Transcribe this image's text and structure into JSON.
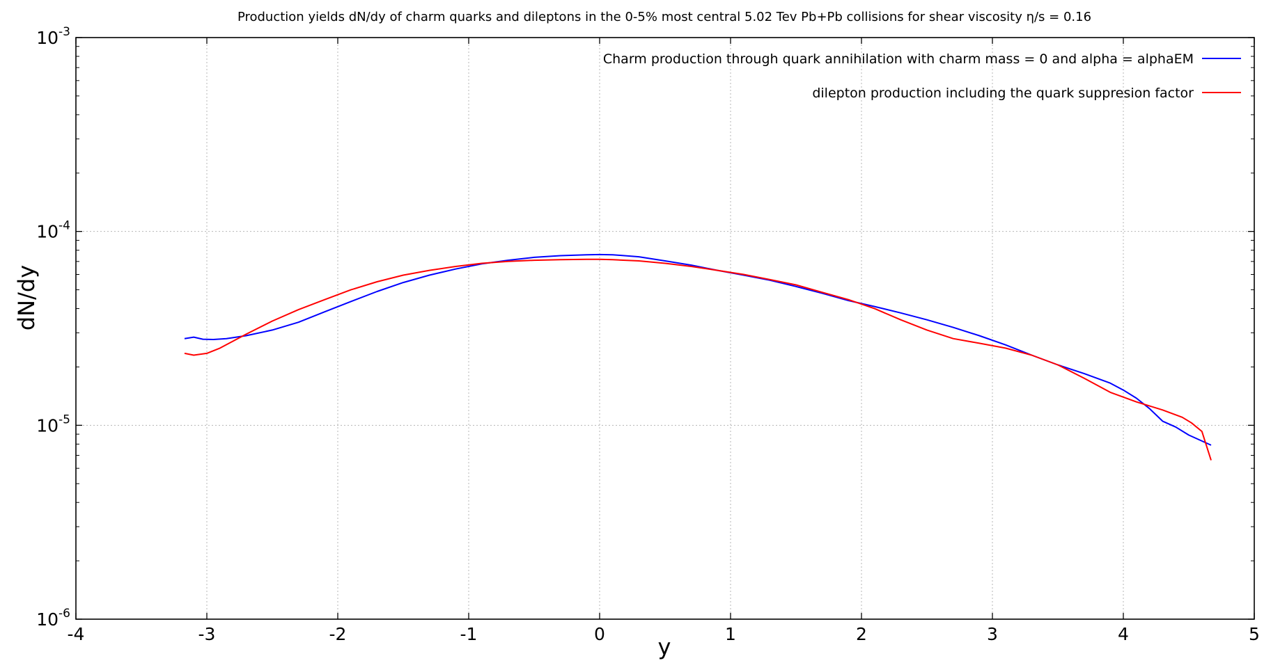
{
  "chart_data": {
    "type": "line",
    "title": "Production yields dN/dy of charm quarks and dileptons in the 0-5% most central 5.02 Tev Pb+Pb collisions for shear viscosity η/s = 0.16",
    "xlabel": "y",
    "ylabel": "dN/dy",
    "xlim": [
      -4,
      5
    ],
    "ylim": [
      1e-06,
      0.001
    ],
    "yscale": "log",
    "grid": true,
    "legend_position": "top-right",
    "x_ticks": [
      "-4",
      "-3",
      "-2",
      "-1",
      "0",
      "1",
      "2",
      "3",
      "4",
      "5"
    ],
    "y_ticks": [
      {
        "base": "10",
        "exp": "-6"
      },
      {
        "base": "10",
        "exp": "-5"
      },
      {
        "base": "10",
        "exp": "-4"
      },
      {
        "base": "10",
        "exp": "-3"
      }
    ],
    "series": [
      {
        "name": "Charm production through quark annihilation with charm mass = 0 and alpha = alphaEM",
        "color": "#0000ff",
        "x": [
          -3.17,
          -3.1,
          -3.03,
          -2.95,
          -2.85,
          -2.7,
          -2.5,
          -2.3,
          -2.1,
          -1.9,
          -1.7,
          -1.5,
          -1.3,
          -1.1,
          -0.9,
          -0.7,
          -0.5,
          -0.3,
          -0.1,
          0.0,
          0.1,
          0.3,
          0.5,
          0.7,
          0.9,
          1.1,
          1.3,
          1.5,
          1.7,
          1.9,
          2.1,
          2.3,
          2.5,
          2.7,
          2.9,
          3.1,
          3.3,
          3.5,
          3.7,
          3.9,
          4.0,
          4.1,
          4.2,
          4.3,
          4.4,
          4.5,
          4.6,
          4.67
        ],
        "y": [
          2.8e-05,
          2.85e-05,
          2.78e-05,
          2.77e-05,
          2.8e-05,
          2.9e-05,
          3.1e-05,
          3.4e-05,
          3.85e-05,
          4.35e-05,
          4.9e-05,
          5.45e-05,
          5.95e-05,
          6.4e-05,
          6.8e-05,
          7.1e-05,
          7.35e-05,
          7.5e-05,
          7.58e-05,
          7.6e-05,
          7.58e-05,
          7.4e-05,
          7.05e-05,
          6.7e-05,
          6.3e-05,
          5.95e-05,
          5.6e-05,
          5.2e-05,
          4.8e-05,
          4.4e-05,
          4.1e-05,
          3.8e-05,
          3.5e-05,
          3.2e-05,
          2.9e-05,
          2.6e-05,
          2.3e-05,
          2.05e-05,
          1.85e-05,
          1.65e-05,
          1.52e-05,
          1.38e-05,
          1.22e-05,
          1.05e-05,
          9.8e-06,
          8.9e-06,
          8.3e-06,
          7.9e-06
        ]
      },
      {
        "name": "dilepton production including the quark suppresion factor",
        "color": "#ff0000",
        "x": [
          -3.17,
          -3.1,
          -3.0,
          -2.9,
          -2.7,
          -2.5,
          -2.3,
          -2.1,
          -1.9,
          -1.7,
          -1.5,
          -1.3,
          -1.1,
          -0.9,
          -0.7,
          -0.5,
          -0.3,
          -0.1,
          0.0,
          0.1,
          0.3,
          0.5,
          0.7,
          0.9,
          1.1,
          1.3,
          1.5,
          1.7,
          1.9,
          2.1,
          2.3,
          2.5,
          2.7,
          2.9,
          3.1,
          3.3,
          3.5,
          3.7,
          3.9,
          4.1,
          4.3,
          4.45,
          4.52,
          4.6,
          4.67
        ],
        "y": [
          2.35e-05,
          2.3e-05,
          2.35e-05,
          2.5e-05,
          2.95e-05,
          3.45e-05,
          3.95e-05,
          4.45e-05,
          5e-05,
          5.5e-05,
          5.95e-05,
          6.3e-05,
          6.6e-05,
          6.85e-05,
          7e-05,
          7.1e-05,
          7.15e-05,
          7.18e-05,
          7.18e-05,
          7.15e-05,
          7.05e-05,
          6.85e-05,
          6.6e-05,
          6.3e-05,
          6e-05,
          5.65e-05,
          5.3e-05,
          4.85e-05,
          4.45e-05,
          4e-05,
          3.5e-05,
          3.1e-05,
          2.8e-05,
          2.65e-05,
          2.5e-05,
          2.3e-05,
          2.05e-05,
          1.75e-05,
          1.48e-05,
          1.32e-05,
          1.2e-05,
          1.1e-05,
          1.03e-05,
          9.3e-06,
          6.6e-06
        ]
      }
    ]
  }
}
